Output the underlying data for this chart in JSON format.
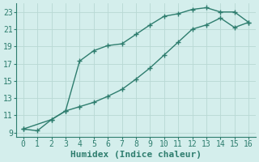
{
  "xlabel": "Humidex (Indice chaleur)",
  "background_color": "#d4eeec",
  "grid_color": "#b8d8d4",
  "line_color": "#2e7d6e",
  "xlim": [
    -0.5,
    16.5
  ],
  "ylim": [
    8.5,
    24.0
  ],
  "yticks": [
    9,
    11,
    13,
    15,
    17,
    19,
    21,
    23
  ],
  "xticks": [
    0,
    1,
    2,
    3,
    4,
    5,
    6,
    7,
    8,
    9,
    10,
    11,
    12,
    13,
    14,
    15,
    16
  ],
  "series1_x": [
    0,
    1,
    2,
    3,
    4,
    5,
    6,
    7,
    8,
    9,
    10,
    11,
    12,
    13,
    14,
    15,
    16
  ],
  "series1_y": [
    9.4,
    9.2,
    10.5,
    11.5,
    17.3,
    18.5,
    19.1,
    19.3,
    20.4,
    21.5,
    22.5,
    22.8,
    23.3,
    23.5,
    23.0,
    23.0,
    21.8
  ],
  "series2_x": [
    0,
    2,
    3,
    4,
    5,
    6,
    7,
    8,
    9,
    10,
    11,
    12,
    13,
    14,
    15,
    16
  ],
  "series2_y": [
    9.4,
    10.5,
    11.5,
    12.0,
    12.5,
    13.2,
    14.0,
    15.2,
    16.5,
    18.0,
    19.5,
    21.0,
    21.5,
    22.3,
    21.2,
    21.8
  ],
  "marker_size": 2.5,
  "line_width": 1.0,
  "font_family": "monospace",
  "xlabel_fontsize": 8,
  "tick_fontsize": 7
}
